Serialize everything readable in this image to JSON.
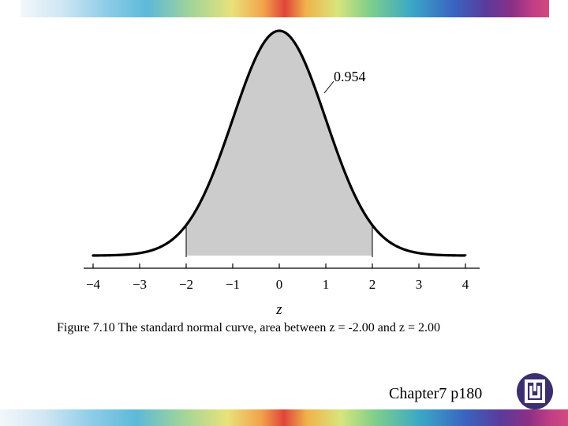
{
  "chart_data": {
    "type": "area",
    "function": "standard normal density",
    "xlim": [
      -4,
      4
    ],
    "xticks": [
      "−4",
      "−3",
      "−2",
      "−1",
      "0",
      "1",
      "2",
      "3",
      "4"
    ],
    "xlabel": "z",
    "shaded_range": [
      -2.0,
      2.0
    ],
    "annotation": "0.954",
    "grid": false,
    "colors": {
      "curve": "#000000",
      "shade": "#cccccc"
    }
  },
  "caption": "Figure 7.10  The standard normal curve, area between z = -2.00 and z = 2.00",
  "footer": "Chapter7 p180",
  "logo_icon": "institution-logo-icon"
}
